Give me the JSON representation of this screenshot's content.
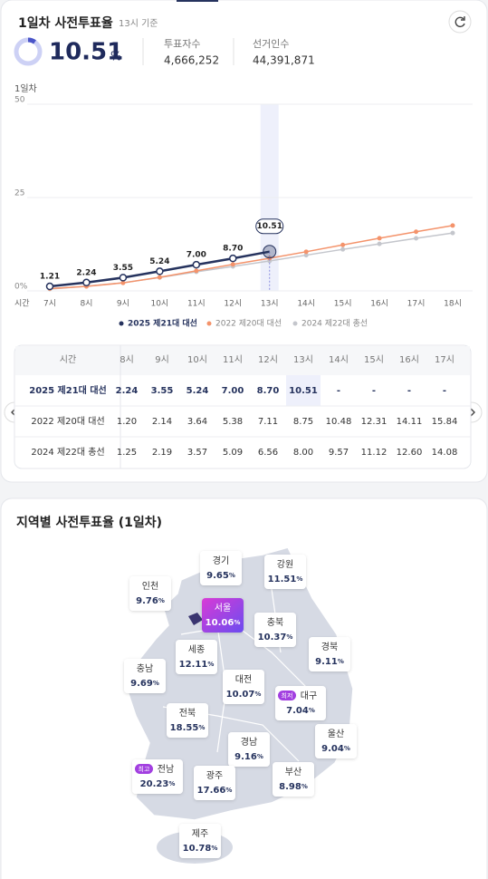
{
  "header": {
    "title": "1일차 사전투표율",
    "basis": "13시 기준",
    "rate": "10.51",
    "rate_unit": "%",
    "stats": [
      {
        "label": "투표자수",
        "value": "4,666,252"
      },
      {
        "label": "선거인수",
        "value": "44,391,871"
      }
    ]
  },
  "chart_data": {
    "type": "line",
    "y_label": "1일차",
    "x_label": "시간",
    "categories": [
      "7시",
      "8시",
      "9시",
      "10시",
      "11시",
      "12시",
      "13시",
      "14시",
      "15시",
      "16시",
      "17시",
      "18시"
    ],
    "ylim": [
      0,
      50
    ],
    "yticks": [
      {
        "value": 0,
        "label": "0%"
      },
      25,
      50
    ],
    "grid": true,
    "legend": "bottom",
    "series": [
      {
        "name": "2025 제21대 대선",
        "color": "#26335e",
        "values": [
          1.21,
          2.24,
          3.55,
          5.24,
          7.0,
          8.7,
          10.51,
          null,
          null,
          null,
          null,
          null
        ],
        "value_labels": [
          "1.21",
          "2.24",
          "3.55",
          "5.24",
          "7.00",
          "8.70",
          "10.51",
          null,
          null,
          null,
          null,
          null
        ]
      },
      {
        "name": "2022 제20대 대선",
        "color": "#f4936b",
        "values": [
          0.6,
          1.2,
          2.14,
          3.64,
          5.38,
          7.11,
          8.75,
          10.48,
          12.31,
          14.11,
          15.84,
          17.5
        ]
      },
      {
        "name": "2024 제22대 총선",
        "color": "#c4c6cc",
        "values": [
          0.5,
          1.25,
          2.19,
          3.57,
          5.09,
          6.56,
          8.0,
          9.57,
          11.12,
          12.6,
          14.08,
          15.5
        ]
      }
    ]
  },
  "table": {
    "header": "시간",
    "columns": [
      "8시",
      "9시",
      "10시",
      "11시",
      "12시",
      "13시",
      "14시",
      "15시",
      "16시",
      "17시"
    ],
    "rows": [
      {
        "label": "2025 제21대 대선",
        "cells": [
          "2.24",
          "3.55",
          "5.24",
          "7.00",
          "8.70",
          "10.51",
          "-",
          "-",
          "-",
          "-"
        ]
      },
      {
        "label": "2022 제20대 대선",
        "cells": [
          "1.20",
          "2.14",
          "3.64",
          "5.38",
          "7.11",
          "8.75",
          "10.48",
          "12.31",
          "14.11",
          "15.84"
        ]
      },
      {
        "label": "2024 제22대 총선",
        "cells": [
          "1.25",
          "2.19",
          "3.57",
          "5.09",
          "6.56",
          "8.00",
          "9.57",
          "11.12",
          "12.60",
          "14.08"
        ]
      }
    ]
  },
  "map": {
    "title": "지역별 사전투표율 (1일차)",
    "unit": "%",
    "regions": [
      {
        "name": "경기",
        "value": "9.65"
      },
      {
        "name": "강원",
        "value": "11.51"
      },
      {
        "name": "인천",
        "value": "9.76"
      },
      {
        "name": "서울",
        "value": "10.06"
      },
      {
        "name": "충북",
        "value": "10.37"
      },
      {
        "name": "경북",
        "value": "9.11"
      },
      {
        "name": "세종",
        "value": "12.11"
      },
      {
        "name": "충남",
        "value": "9.69"
      },
      {
        "name": "대전",
        "value": "10.07"
      },
      {
        "name": "대구",
        "value": "7.04",
        "badge": "최저"
      },
      {
        "name": "전북",
        "value": "18.55"
      },
      {
        "name": "울산",
        "value": "9.04"
      },
      {
        "name": "경남",
        "value": "9.16"
      },
      {
        "name": "부산",
        "value": "8.98"
      },
      {
        "name": "전남",
        "value": "20.23",
        "badge": "최고"
      },
      {
        "name": "광주",
        "value": "17.66"
      },
      {
        "name": "제주",
        "value": "10.78"
      }
    ]
  }
}
